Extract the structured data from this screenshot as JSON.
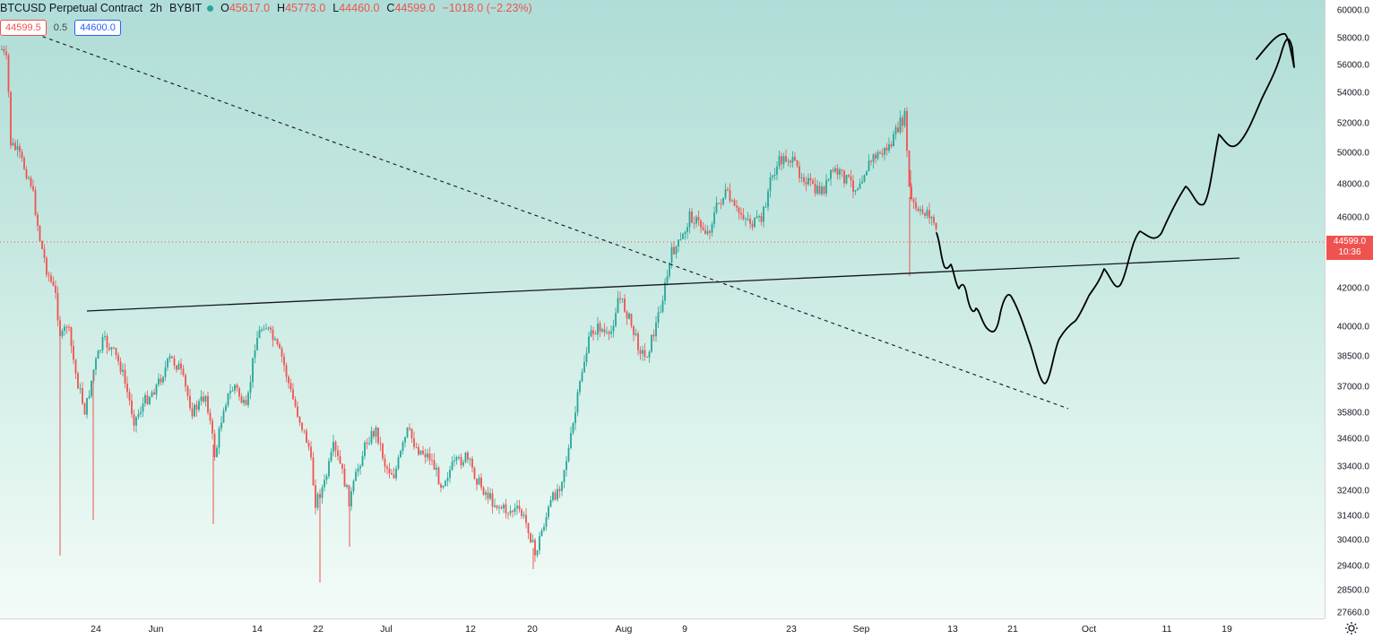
{
  "legend": {
    "symbol": "BTCUSD Perpetual Contract",
    "interval": "2h",
    "exchange": "BYBIT",
    "open_label": "O",
    "open": "45617.0",
    "high_label": "H",
    "high": "45773.0",
    "low_label": "L",
    "low": "44460.0",
    "close_label": "C",
    "close": "44599.0",
    "change": "−1018.0 (−2.23%)"
  },
  "quote": {
    "sell": "44599.5",
    "spread": "0.5",
    "buy": "44600.0"
  },
  "current_price": {
    "price": "44599.0",
    "countdown": "10:36"
  },
  "price_axis": [
    "60000.0",
    "58000.0",
    "56000.0",
    "54000.0",
    "52000.0",
    "50000.0",
    "48000.0",
    "46000.0",
    "42000.0",
    "40000.0",
    "38500.0",
    "37000.0",
    "35800.0",
    "34600.0",
    "33400.0",
    "32400.0",
    "31400.0",
    "30400.0",
    "29400.0",
    "28500.0",
    "27660.0"
  ],
  "time_axis": [
    "24",
    "Jun",
    "14",
    "22",
    "Jul",
    "12",
    "20",
    "Aug",
    "9",
    "23",
    "Sep",
    "13",
    "21",
    "Oct",
    "11",
    "19"
  ],
  "colors": {
    "up": "#26a69a",
    "down": "#ef5350",
    "drawing": "#000000"
  },
  "icons": {
    "settings": "gear-icon"
  }
}
